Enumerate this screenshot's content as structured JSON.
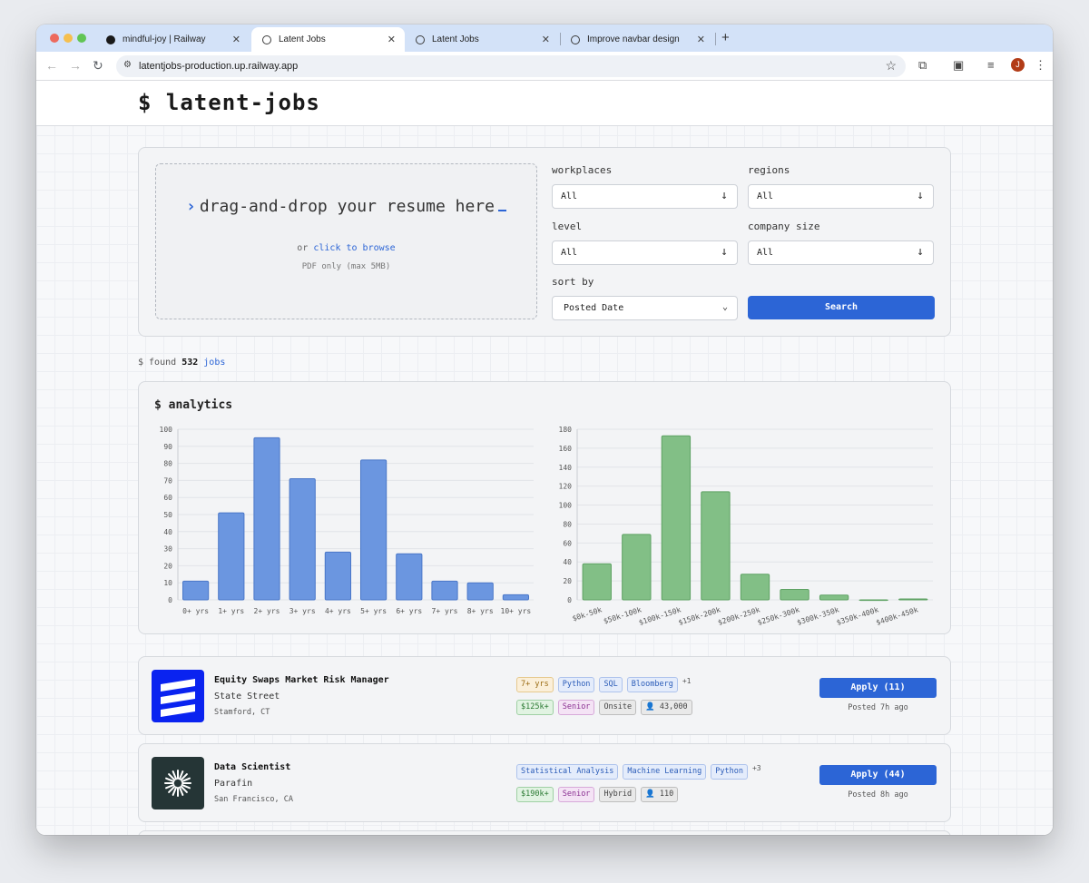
{
  "browser": {
    "tabs": [
      {
        "title": "mindful-joy | Railway"
      },
      {
        "title": "Latent Jobs"
      },
      {
        "title": "Latent Jobs"
      },
      {
        "title": "Improve navbar design"
      }
    ],
    "url": "latentjobs-production.up.railway.app",
    "avatar_letter": "J"
  },
  "site": {
    "title": "$ latent-jobs"
  },
  "upload": {
    "prompt": "drag-and-drop your resume here",
    "or": "or",
    "browse_link": "click to browse",
    "note": "PDF only (max 5MB)"
  },
  "filters": {
    "workplaces": {
      "label": "workplaces",
      "value": "All"
    },
    "regions": {
      "label": "regions",
      "value": "All"
    },
    "level": {
      "label": "level",
      "value": "All"
    },
    "company_size": {
      "label": "company size",
      "value": "All"
    },
    "sort_by": {
      "label": "sort by",
      "value": "Posted Date"
    },
    "search_label": "Search"
  },
  "results": {
    "prefix": "$ found",
    "count": "532",
    "suffix": "jobs"
  },
  "analytics": {
    "title": "$ analytics"
  },
  "chart_data": [
    {
      "type": "bar",
      "categories": [
        "0+ yrs",
        "1+ yrs",
        "2+ yrs",
        "3+ yrs",
        "4+ yrs",
        "5+ yrs",
        "6+ yrs",
        "7+ yrs",
        "8+ yrs",
        "10+ yrs"
      ],
      "values": [
        11,
        51,
        95,
        71,
        28,
        82,
        27,
        11,
        10,
        3
      ],
      "ylim": [
        0,
        100
      ],
      "yticks": [
        0,
        10,
        20,
        30,
        40,
        50,
        60,
        70,
        80,
        90,
        100
      ],
      "color": "#6b96e0",
      "grid": true
    },
    {
      "type": "bar",
      "categories": [
        "$0k-50k",
        "$50k-100k",
        "$100k-150k",
        "$150k-200k",
        "$200k-250k",
        "$250k-300k",
        "$300k-350k",
        "$350k-400k",
        "$400k-450k"
      ],
      "values": [
        38,
        69,
        173,
        114,
        27,
        11,
        5,
        0,
        1
      ],
      "ylim": [
        0,
        180
      ],
      "yticks": [
        0,
        20,
        40,
        60,
        80,
        100,
        120,
        140,
        160,
        180
      ],
      "color": "#82bf86",
      "grid": true
    }
  ],
  "jobs": [
    {
      "title": "Equity Swaps Market Risk Manager",
      "company": "State Street",
      "location": "Stamford, CT",
      "experience": "7+ yrs",
      "skills": [
        "Python",
        "SQL",
        "Bloomberg"
      ],
      "more_skills": "+1",
      "salary": "$125k+",
      "level": "Senior",
      "workplace": "Onsite",
      "size": "43,000",
      "apply_label": "Apply (11)",
      "posted": "Posted 7h ago",
      "logo_color": "#0a23f0"
    },
    {
      "title": "Data Scientist",
      "company": "Parafin",
      "location": "San Francisco, CA",
      "skills": [
        "Statistical Analysis",
        "Machine Learning",
        "Python"
      ],
      "more_skills": "+3",
      "salary": "$190k+",
      "level": "Senior",
      "workplace": "Hybrid",
      "size": "110",
      "apply_label": "Apply (44)",
      "posted": "Posted 8h ago",
      "logo_color": "#253536"
    }
  ]
}
